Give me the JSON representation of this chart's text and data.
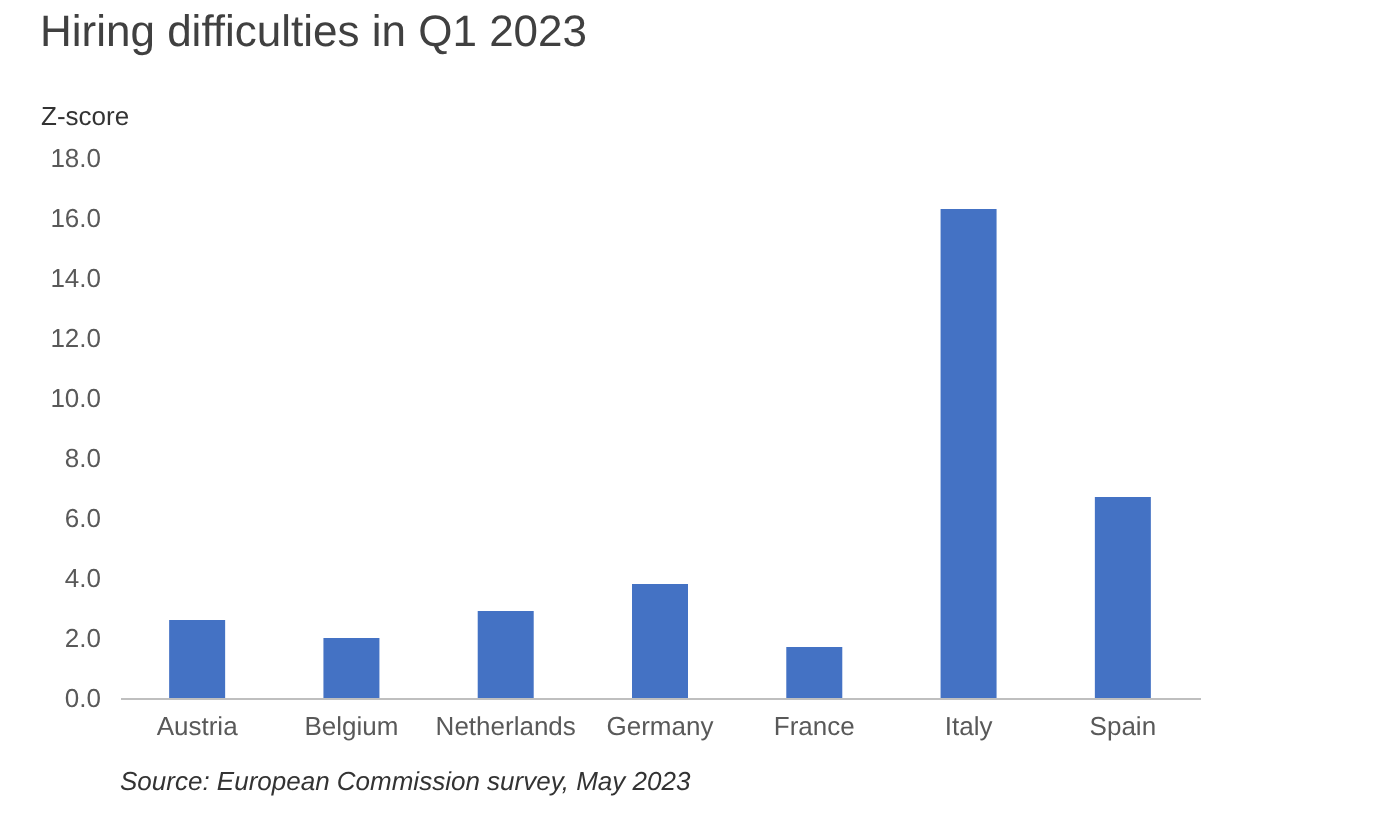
{
  "chart_data": {
    "type": "bar",
    "title": "Hiring difficulties in Q1 2023",
    "ylabel": "Z-score",
    "categories": [
      "Austria",
      "Belgium",
      "Netherlands",
      "Germany",
      "France",
      "Italy",
      "Spain"
    ],
    "values": [
      2.6,
      2.0,
      2.9,
      3.8,
      1.7,
      16.3,
      6.7
    ],
    "color": "#4472c4",
    "ylim": [
      0,
      18
    ],
    "yticks": [
      {
        "value": 0,
        "label": "0.0"
      },
      {
        "value": 2,
        "label": "2.0"
      },
      {
        "value": 4,
        "label": "4.0"
      },
      {
        "value": 6,
        "label": "6.0"
      },
      {
        "value": 8,
        "label": "8.0"
      },
      {
        "value": 10,
        "label": "10.0"
      },
      {
        "value": 12,
        "label": "12.0"
      },
      {
        "value": 14,
        "label": "14.0"
      },
      {
        "value": 16,
        "label": "16.0"
      },
      {
        "value": 18,
        "label": "18.0"
      }
    ],
    "grid": false,
    "annotations": [
      "Source: European Commission survey, May 2023"
    ]
  }
}
